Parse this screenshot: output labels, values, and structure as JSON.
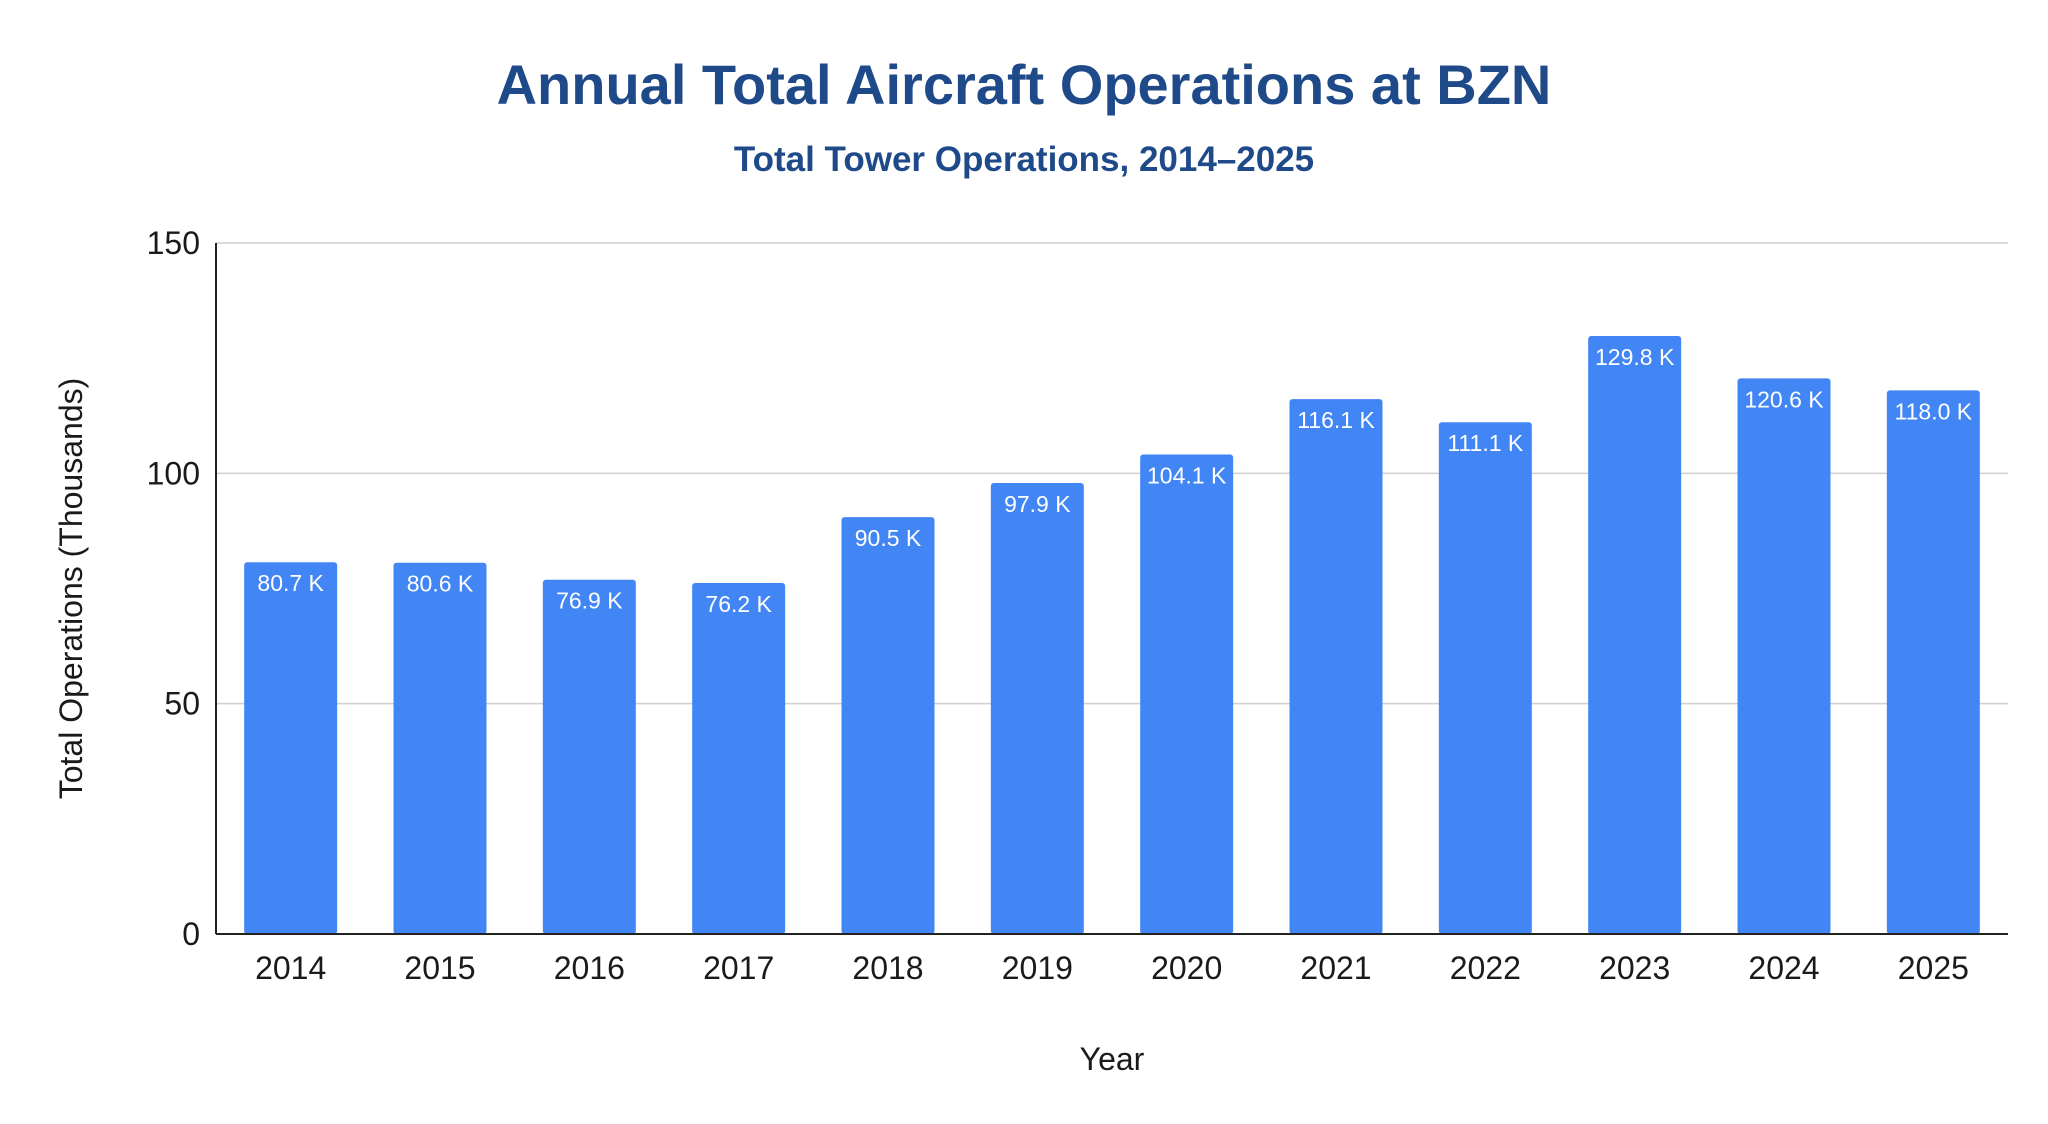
{
  "chart_data": {
    "type": "bar",
    "title": "Annual Total Aircraft Operations at BZN",
    "subtitle": "Total Tower Operations, 2014–2025",
    "xlabel": "Year",
    "ylabel": "Total Operations (Thousands)",
    "categories": [
      "2014",
      "2015",
      "2016",
      "2017",
      "2018",
      "2019",
      "2020",
      "2021",
      "2022",
      "2023",
      "2024",
      "2025"
    ],
    "values": [
      80.7,
      80.6,
      76.9,
      76.2,
      90.5,
      97.9,
      104.1,
      116.1,
      111.1,
      129.8,
      120.6,
      118.0
    ],
    "data_labels": [
      "80.7 K",
      "80.6 K",
      "76.9 K",
      "76.2 K",
      "90.5 K",
      "97.9 K",
      "104.1 K",
      "116.1 K",
      "111.1 K",
      "129.8 K",
      "120.6 K",
      "118.0 K"
    ],
    "ylim": [
      0,
      150
    ],
    "yticks": [
      0,
      50,
      100,
      150
    ],
    "ytick_labels": [
      "0",
      "50",
      "100",
      "150"
    ],
    "grid": true,
    "legend": "none",
    "bar_color": "#4285f4",
    "title_color": "#1f4a8a"
  }
}
